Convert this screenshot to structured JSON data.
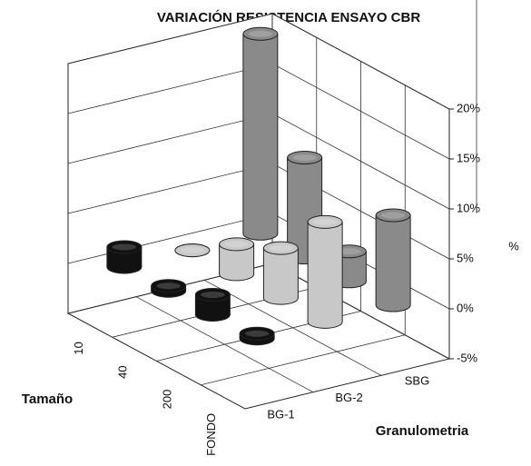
{
  "chart_data": {
    "type": "bar3d",
    "title": "VARIACIÓN RESISTENCIA ENSAYO CBR",
    "x_label": "Tamaño",
    "z_label": "Granulometria",
    "y_label": "%",
    "categories": [
      "10",
      "40",
      "200",
      "FONDO"
    ],
    "series": [
      {
        "name": "BG-1",
        "color": "#111111",
        "values": [
          2,
          0.5,
          2,
          0.5
        ]
      },
      {
        "name": "BG-2",
        "color": "#c8c8c8",
        "values": [
          0,
          3,
          5,
          10
        ]
      },
      {
        "name": "SBG",
        "color": "#8a8a8a",
        "values": [
          20,
          10,
          3,
          9
        ]
      }
    ],
    "ylim": [
      -5,
      20
    ],
    "yticks": [
      {
        "value": -5,
        "label": "-5%"
      },
      {
        "value": 0,
        "label": "0%"
      },
      {
        "value": 5,
        "label": "5%"
      },
      {
        "value": 10,
        "label": "10%"
      },
      {
        "value": 15,
        "label": "15%"
      },
      {
        "value": 20,
        "label": "20%"
      }
    ],
    "grid": true
  }
}
